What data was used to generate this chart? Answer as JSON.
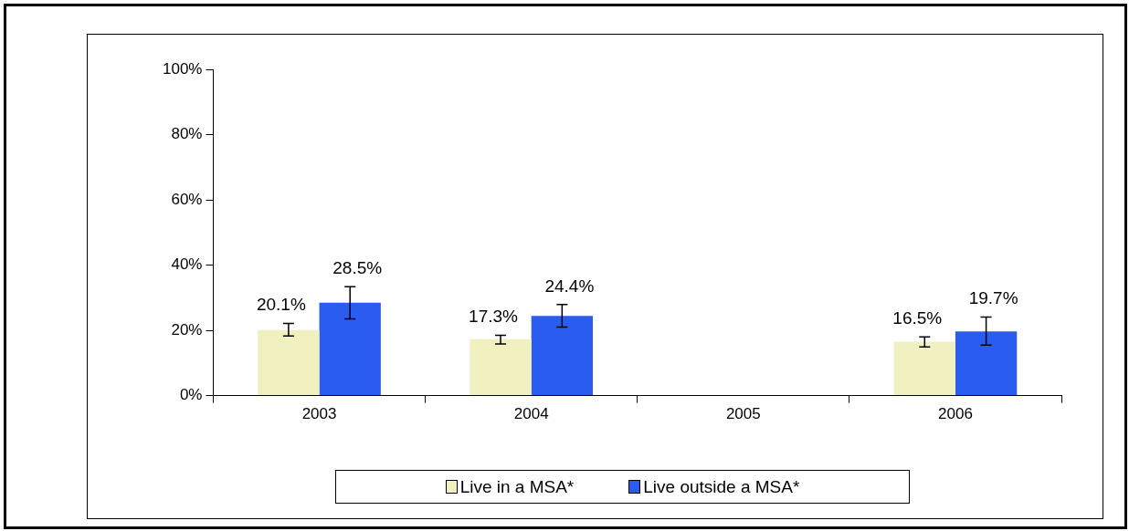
{
  "chart_data": {
    "type": "bar",
    "categories": [
      "2003",
      "2004",
      "2005",
      "2006"
    ],
    "series": [
      {
        "name": "Live in a MSA*",
        "color": "#f0f0c0",
        "values": [
          20.1,
          17.3,
          null,
          16.5
        ],
        "value_labels": [
          "20.1%",
          "17.3%",
          null,
          "16.5%"
        ],
        "errors": [
          [
            18.3,
            22.1
          ],
          [
            15.8,
            18.5
          ],
          null,
          [
            14.9,
            18.0
          ]
        ]
      },
      {
        "name": "Live outside a MSA*",
        "color": "#2a5cf0",
        "values": [
          28.5,
          24.4,
          null,
          19.7
        ],
        "value_labels": [
          "28.5%",
          "24.4%",
          null,
          "19.7%"
        ],
        "errors": [
          [
            23.5,
            33.4
          ],
          [
            21.0,
            27.9
          ],
          null,
          [
            15.5,
            24.1
          ]
        ]
      }
    ],
    "ylim": [
      0,
      100
    ],
    "yticks": [
      {
        "value": 0,
        "label": "0%"
      },
      {
        "value": 20,
        "label": "20%"
      },
      {
        "value": 40,
        "label": "40%"
      },
      {
        "value": 60,
        "label": "60%"
      },
      {
        "value": 80,
        "label": "80%"
      },
      {
        "value": 100,
        "label": "100%"
      }
    ],
    "grid": false,
    "legend": "bottom"
  }
}
